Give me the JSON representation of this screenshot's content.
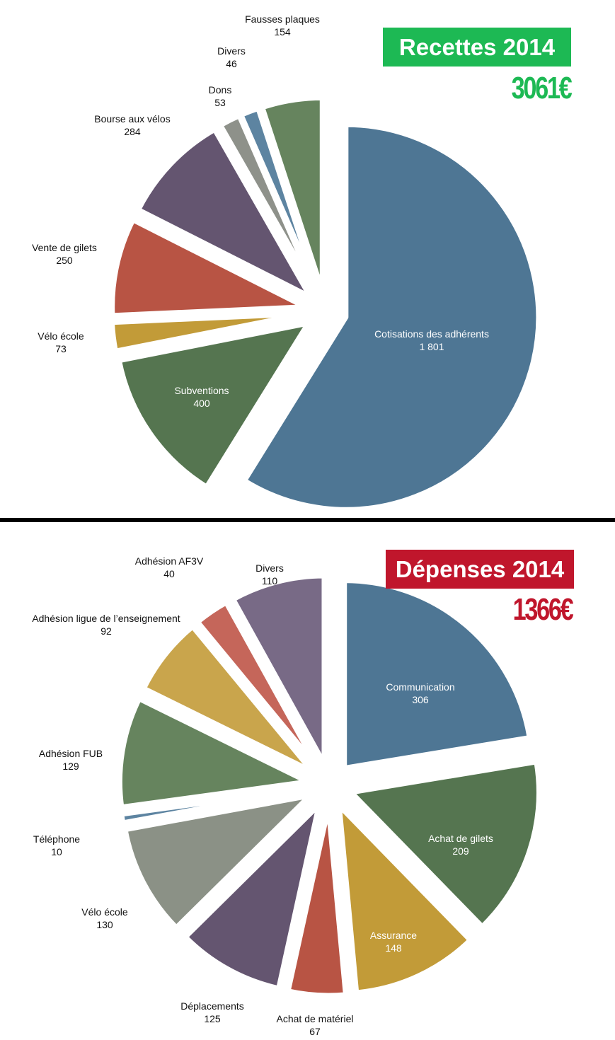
{
  "colors": {
    "recettes_badge": "#1db954",
    "depenses_badge": "#c0162c",
    "blue": "#4e7694",
    "dark_green": "#557550",
    "mustard": "#c29b38",
    "red": "#b85444",
    "purple": "#645570",
    "gray": "#8e918a",
    "steel": "#5d84a1",
    "sage": "#66845e",
    "gold": "#c9a54c",
    "salmon": "#c5665a",
    "mauve": "#786a86",
    "gray_green": "#8b9186"
  },
  "recettes": {
    "title": "Recettes 2014",
    "total": "3061€"
  },
  "depenses": {
    "title": "Dépenses 2014",
    "total": "1366€"
  },
  "chart_data": [
    {
      "type": "pie",
      "title": "Recettes 2014",
      "total_label": "3061€",
      "slices": [
        {
          "label": "Cotisations des adhérents",
          "value_label": "1 801",
          "value": 1801,
          "color": "#4e7694",
          "label_inside": true
        },
        {
          "label": "Subventions",
          "value_label": "400",
          "value": 400,
          "color": "#557550",
          "label_inside": true
        },
        {
          "label": "Vélo école",
          "value_label": "73",
          "value": 73,
          "color": "#c29b38",
          "label_inside": false
        },
        {
          "label": "Vente de gilets",
          "value_label": "250",
          "value": 250,
          "color": "#b85444",
          "label_inside": false
        },
        {
          "label": "Bourse aux vélos",
          "value_label": "284",
          "value": 284,
          "color": "#645570",
          "label_inside": false
        },
        {
          "label": "Dons",
          "value_label": "53",
          "value": 53,
          "color": "#8e918a",
          "label_inside": false
        },
        {
          "label": "Divers",
          "value_label": "46",
          "value": 46,
          "color": "#5d84a1",
          "label_inside": false
        },
        {
          "label": "Fausses plaques",
          "value_label": "154",
          "value": 154,
          "color": "#66845e",
          "label_inside": false
        }
      ]
    },
    {
      "type": "pie",
      "title": "Dépenses 2014",
      "total_label": "1366€",
      "slices": [
        {
          "label": "Communication",
          "value_label": "306",
          "value": 306,
          "color": "#4e7694",
          "label_inside": true
        },
        {
          "label": "Achat de gilets",
          "value_label": "209",
          "value": 209,
          "color": "#557550",
          "label_inside": true
        },
        {
          "label": "Assurance",
          "value_label": "148",
          "value": 148,
          "color": "#c29b38",
          "label_inside": true
        },
        {
          "label": "Achat de matériel",
          "value_label": "67",
          "value": 67,
          "color": "#b85444",
          "label_inside": false
        },
        {
          "label": "Déplacements",
          "value_label": "125",
          "value": 125,
          "color": "#645570",
          "label_inside": false
        },
        {
          "label": "Vélo école",
          "value_label": "130",
          "value": 130,
          "color": "#8b9186",
          "label_inside": false
        },
        {
          "label": "Téléphone",
          "value_label": "10",
          "value": 10,
          "color": "#5d84a1",
          "label_inside": false
        },
        {
          "label": "Adhésion FUB",
          "value_label": "129",
          "value": 129,
          "color": "#66845e",
          "label_inside": false
        },
        {
          "label": "Adhésion ligue de l’enseignement",
          "value_label": "92",
          "value": 92,
          "color": "#c9a54c",
          "label_inside": false
        },
        {
          "label": "Adhésion AF3V",
          "value_label": "40",
          "value": 40,
          "color": "#c5665a",
          "label_inside": false
        },
        {
          "label": "Divers",
          "value_label": "110",
          "value": 110,
          "color": "#786a86",
          "label_inside": false
        }
      ]
    }
  ]
}
